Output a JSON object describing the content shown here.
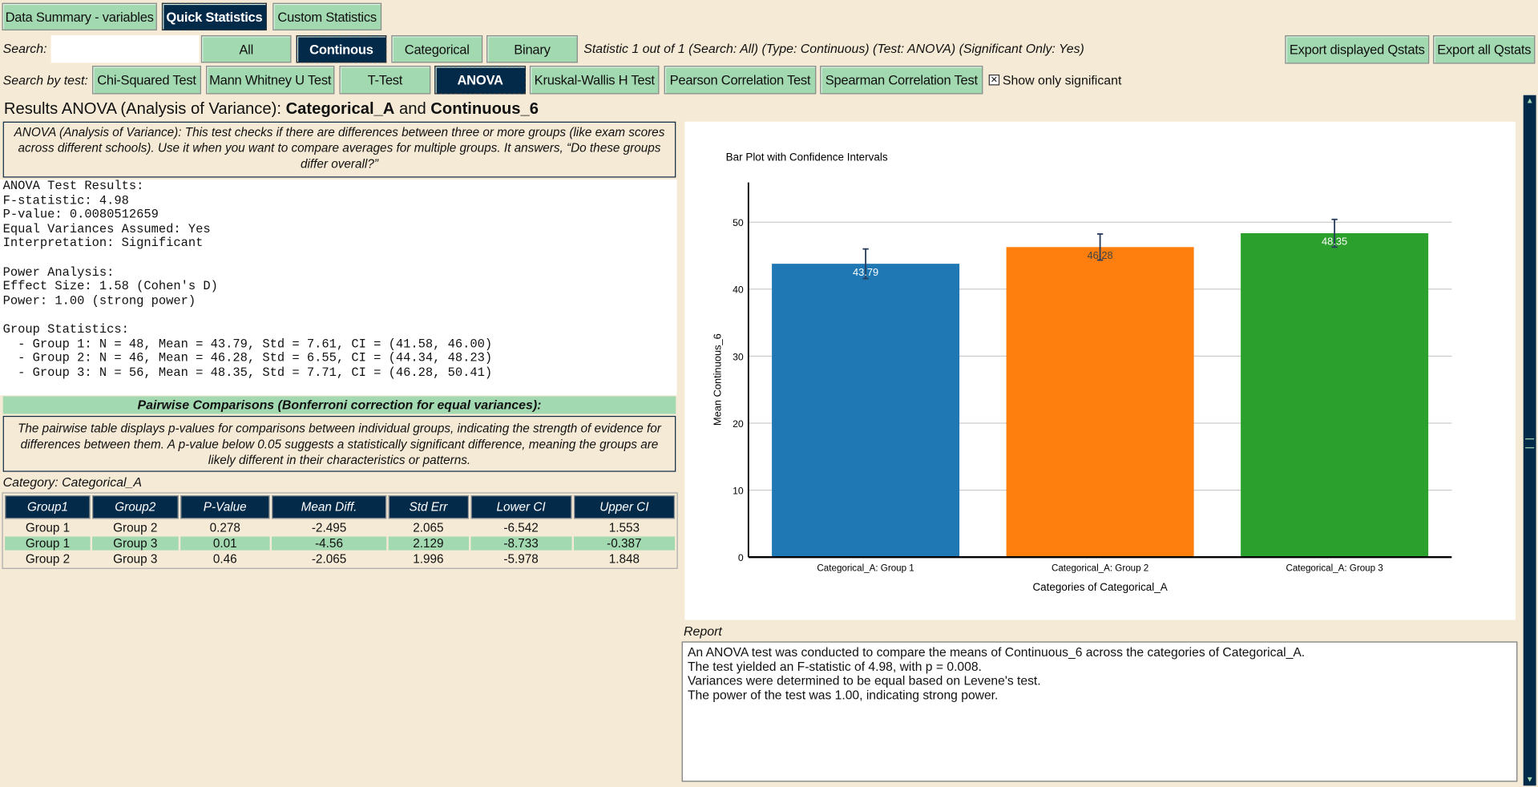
{
  "tabs": [
    {
      "label": "Data Summary - variables",
      "selected": false
    },
    {
      "label": "Quick Statistics",
      "selected": true
    },
    {
      "label": "Custom Statistics",
      "selected": false
    }
  ],
  "search": {
    "label": "Search:",
    "value": "",
    "placeholder": ""
  },
  "type_filters": [
    {
      "label": "All",
      "selected": false
    },
    {
      "label": "Continous",
      "selected": true
    },
    {
      "label": "Categorical",
      "selected": false
    },
    {
      "label": "Binary",
      "selected": false
    }
  ],
  "status": "Statistic 1 out of 1 (Search: All) (Type: Continuous) (Test: ANOVA) (Significant Only: Yes)",
  "export": {
    "displayed": "Export displayed Qstats",
    "all": "Export all Qstats"
  },
  "test_label": "Search by test:",
  "tests": [
    {
      "label": "Chi-Squared Test",
      "selected": false
    },
    {
      "label": "Mann Whitney U Test",
      "selected": false
    },
    {
      "label": "T-Test",
      "selected": false
    },
    {
      "label": "ANOVA",
      "selected": true
    },
    {
      "label": "Kruskal-Wallis H Test",
      "selected": false
    },
    {
      "label": "Pearson Correlation Test",
      "selected": false
    },
    {
      "label": "Spearman Correlation Test",
      "selected": false
    }
  ],
  "show_significant": {
    "label": "Show only significant",
    "checked": true
  },
  "results": {
    "title_prefix": "Results ANOVA (Analysis of Variance): ",
    "var1": "Categorical_A",
    "and": " and ",
    "var2": "Continuous_6",
    "info": "ANOVA (Analysis of Variance): This test checks if there are differences between three or more groups (like exam scores across different schools). Use it when you want to compare averages for multiple groups. It answers, “Do these groups differ overall?”",
    "output": "ANOVA Test Results:\nF-statistic: 4.98\nP-value: 0.0080512659\nEqual Variances Assumed: Yes\nInterpretation: Significant\n\nPower Analysis:\nEffect Size: 1.58 (Cohen's D)\nPower: 1.00 (strong power)\n\nGroup Statistics:\n  - Group 1: N = 48, Mean = 43.79, Std = 7.61, CI = (41.58, 46.00)\n  - Group 2: N = 46, Mean = 46.28, Std = 6.55, CI = (44.34, 48.23)\n  - Group 3: N = 56, Mean = 48.35, Std = 7.71, CI = (46.28, 50.41)",
    "pairwise_header": "Pairwise Comparisons (Bonferroni correction for equal variances):",
    "pairwise_info": "The pairwise table displays p-values for comparisons between individual groups, indicating the strength of evidence for differences between them. A p-value below 0.05 suggests a statistically significant difference, meaning the groups are likely different in their characteristics or patterns.",
    "category": "Category: Categorical_A",
    "columns": [
      "Group1",
      "Group2",
      "P-Value",
      "Mean Diff.",
      "Std Err",
      "Lower CI",
      "Upper CI"
    ],
    "rows": [
      [
        "Group 1",
        "Group 2",
        "0.278",
        "-2.495",
        "2.065",
        "-6.542",
        "1.553"
      ],
      [
        "Group 1",
        "Group 3",
        "0.01",
        "-4.56",
        "2.129",
        "-8.733",
        "-0.387"
      ],
      [
        "Group 2",
        "Group 3",
        "0.46",
        "-2.065",
        "1.996",
        "-5.978",
        "1.848"
      ]
    ],
    "highlight_row": 1
  },
  "chart_data": {
    "type": "bar",
    "title": "Bar Plot with Confidence Intervals",
    "categories": [
      "Categorical_A: Group 1",
      "Categorical_A: Group 2",
      "Categorical_A: Group 3"
    ],
    "values": [
      43.79,
      46.28,
      48.35
    ],
    "ci_lower": [
      41.58,
      44.34,
      46.28
    ],
    "ci_upper": [
      46.0,
      48.23,
      50.41
    ],
    "labels": [
      "43.79",
      "46.28",
      "48.35"
    ],
    "colors": [
      "#1f77b4",
      "#ff7f0e",
      "#2ca02c"
    ],
    "xlabel": "Categories of Categorical_A",
    "ylabel": "Mean Continuous_6",
    "ylim": [
      0,
      53
    ],
    "yticks": [
      0,
      10,
      20,
      30,
      40,
      50
    ],
    "grid": true
  },
  "report": {
    "label": "Report",
    "text": "An ANOVA test was conducted to compare the means of Continuous_6 across the categories of Categorical_A.\nThe test yielded an F-statistic of 4.98, with p = 0.008.\nVariances were determined to be equal based on Levene's test.\nThe power of the test was 1.00, indicating strong power."
  },
  "colors": {
    "background": "#f5ead5",
    "button": "#a3d9b1",
    "selected": "#042a4a"
  }
}
